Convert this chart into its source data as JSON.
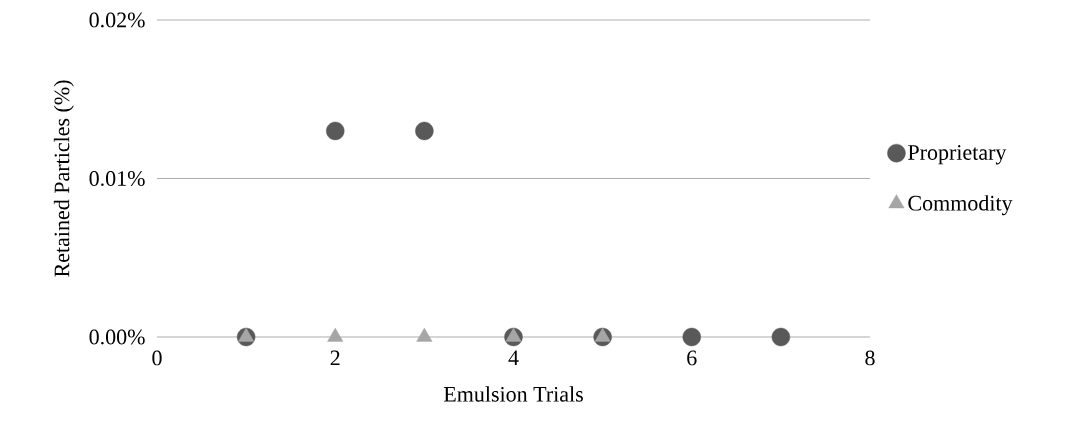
{
  "chart_data": {
    "type": "scatter",
    "xlabel": "Emulsion Trials",
    "ylabel": "Retained Particles (%)",
    "series": [
      {
        "name": "Proprietary",
        "color": "#595959",
        "marker": "circle",
        "x": [
          1,
          2,
          3,
          4,
          5,
          6,
          7
        ],
        "values": [
          0,
          0.013,
          0.013,
          0,
          0,
          0,
          0
        ]
      },
      {
        "name": "Commodity",
        "color": "#a6a6a6",
        "marker": "triangle",
        "x": [
          1,
          2,
          3,
          4,
          5
        ],
        "values": [
          0,
          0,
          0,
          0,
          0
        ]
      }
    ],
    "xlim": [
      0,
      8
    ],
    "xticks": [
      0,
      2,
      4,
      6,
      8
    ],
    "ylim": [
      0,
      0.02
    ],
    "yticks": [
      {
        "value": 0,
        "label": "0.00%"
      },
      {
        "value": 0.01,
        "label": "0.01%"
      },
      {
        "value": 0.02,
        "label": "0.02%"
      }
    ],
    "grid": "y",
    "legend": "right"
  }
}
